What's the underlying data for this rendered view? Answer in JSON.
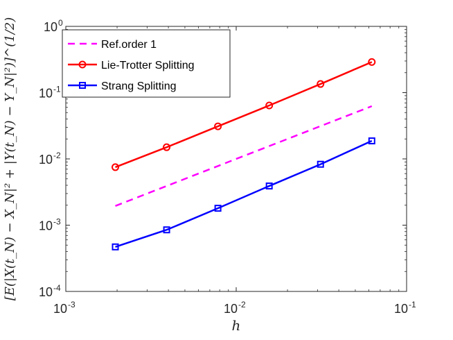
{
  "chart_data": {
    "type": "line",
    "xscale": "log",
    "yscale": "log",
    "xlim": [
      0.001,
      0.1
    ],
    "ylim": [
      0.0001,
      1
    ],
    "grid": false,
    "legend_position": "top-left",
    "xlabel": "h",
    "ylabel": "[E(|X(t_N) − X_N|² + |Y(t_N) − Y_N|²)]^(1/2)",
    "x_ticks": [
      {
        "value": 0.001,
        "base": "10",
        "exp": "-3"
      },
      {
        "value": 0.01,
        "base": "10",
        "exp": "-2"
      },
      {
        "value": 0.1,
        "base": "10",
        "exp": "-1"
      }
    ],
    "y_ticks": [
      {
        "value": 0.0001,
        "base": "10",
        "exp": "-4"
      },
      {
        "value": 0.001,
        "base": "10",
        "exp": "-3"
      },
      {
        "value": 0.01,
        "base": "10",
        "exp": "-2"
      },
      {
        "value": 0.1,
        "base": "10",
        "exp": "-1"
      },
      {
        "value": 1,
        "base": "10",
        "exp": "0"
      }
    ],
    "series": [
      {
        "name": "Ref.order 1",
        "color": "#ff00ff",
        "style": "dashed",
        "marker": "none",
        "x": [
          0.001953125,
          0.0625
        ],
        "y": [
          0.00195,
          0.0625
        ]
      },
      {
        "name": "Lie-Trotter Splitting",
        "color": "#ff0000",
        "style": "solid",
        "marker": "circle",
        "x": [
          0.001953125,
          0.00390625,
          0.0078125,
          0.015625,
          0.03125,
          0.0625
        ],
        "y": [
          0.0075,
          0.015,
          0.031,
          0.064,
          0.135,
          0.29
        ]
      },
      {
        "name": "Strang Splitting",
        "color": "#0000ff",
        "style": "solid",
        "marker": "square",
        "x": [
          0.001953125,
          0.00390625,
          0.0078125,
          0.015625,
          0.03125,
          0.0625
        ],
        "y": [
          0.00047,
          0.00085,
          0.0018,
          0.0039,
          0.0083,
          0.0187
        ]
      }
    ]
  }
}
